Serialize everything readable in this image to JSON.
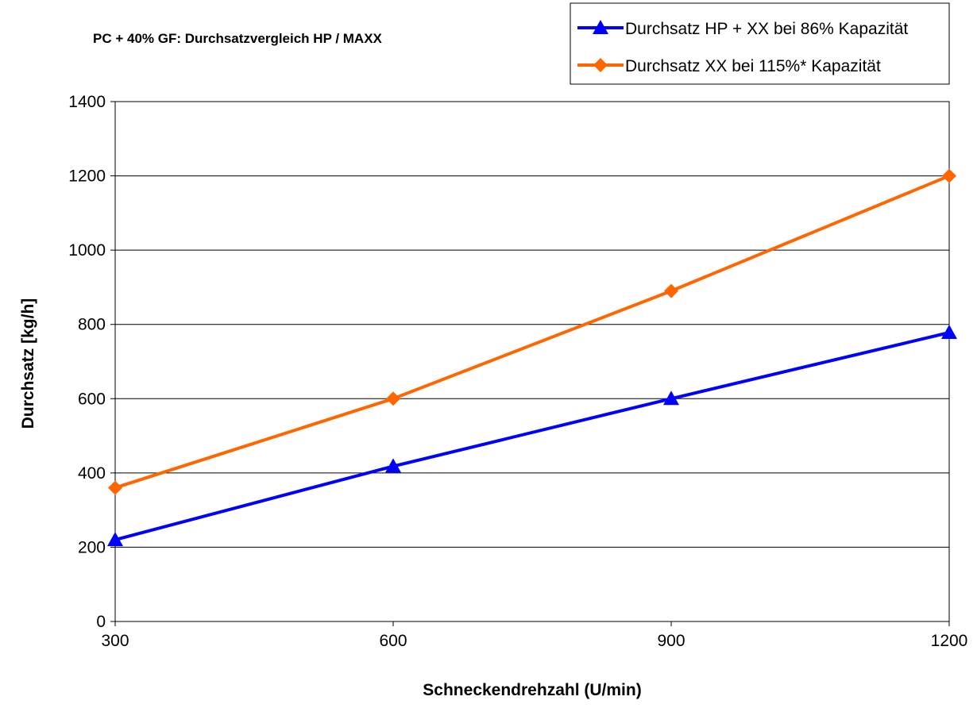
{
  "chart_data": {
    "type": "line",
    "title": "PC + 40% GF: Durchsatzvergleich HP / MAXX",
    "xlabel": "Schneckendrehzahl (U/min)",
    "ylabel": "Durchsatz [kg/h]",
    "x_ticks": [
      "300",
      "600",
      "900",
      "1200"
    ],
    "y_ticks": [
      "0",
      "200",
      "400",
      "600",
      "800",
      "1000",
      "1200",
      "1400"
    ],
    "xlim": [
      300,
      1200
    ],
    "ylim": [
      0,
      1400
    ],
    "grid": "horizontal",
    "legend_position": "top-right",
    "series": [
      {
        "name": "Durchsatz HP + XX bei 86% Kapazität",
        "color": "#0000ff",
        "marker": "triangle",
        "x": [
          300,
          600,
          900,
          1200
        ],
        "y": [
          220,
          418,
          600,
          778
        ]
      },
      {
        "name": "Durchsatz XX bei 115%* Kapazität",
        "color": "#ff6600",
        "marker": "diamond",
        "x": [
          300,
          600,
          900,
          1200
        ],
        "y": [
          360,
          600,
          890,
          1200
        ]
      }
    ]
  }
}
